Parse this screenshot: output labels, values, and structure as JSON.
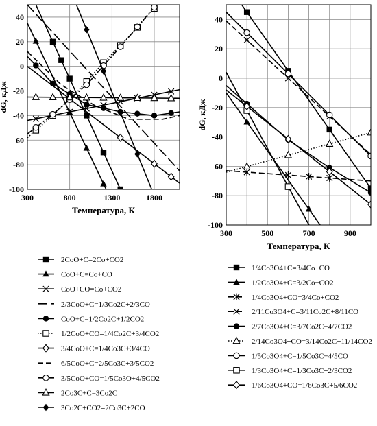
{
  "chart_data": [
    {
      "type": "line",
      "xlabel": "Температура, К",
      "ylabel": "dG, кДж",
      "xlim": [
        300,
        2100
      ],
      "ylim": [
        -100,
        50
      ],
      "xticks": [
        300,
        800,
        1300,
        1800
      ],
      "yticks": [
        -100,
        -80,
        -60,
        -40,
        -20,
        0,
        20,
        40
      ],
      "grid": true,
      "legend_position": "bottom",
      "series": [
        {
          "name": "2CoO+C=2Co+CO2",
          "marker": "square-filled",
          "dash": "solid",
          "x": [
            300,
            1500
          ],
          "y": [
            65,
            -115
          ],
          "markers_x": [
            600,
            700,
            800,
            1000,
            1200,
            1400
          ]
        },
        {
          "name": "CoO+C=Co+CO",
          "marker": "triangle-filled",
          "dash": "solid",
          "x": [
            300,
            1300
          ],
          "y": [
            35,
            -110
          ],
          "markers_x": [
            400,
            800,
            1000,
            1200
          ]
        },
        {
          "name": "CoO+CO=Co+CO2",
          "marker": "x",
          "dash": "solid",
          "x": [
            300,
            2100
          ],
          "y": [
            -44,
            -19
          ],
          "markers_x": [
            400,
            600,
            800,
            1000,
            1200,
            1400,
            1600,
            1800,
            2000
          ]
        },
        {
          "name": "2/3CoO+C=1/3Co2C+2/3CO",
          "marker": "none",
          "dash": "longdash",
          "x": [
            300,
            2100
          ],
          "y": [
            50,
            -85
          ]
        },
        {
          "name": "CoO+C=1/2Co2C+1/2CO2",
          "marker": "circle-filled",
          "dash": "solid",
          "x": [
            300,
            600,
            1000,
            1400,
            1800,
            2100
          ],
          "y": [
            8,
            -14,
            -31,
            -37,
            -40,
            -37
          ],
          "markers_x": [
            400,
            600,
            800,
            1000,
            1200,
            1400,
            1600,
            1800,
            2000
          ]
        },
        {
          "name": "1/2CoO+CO=1/4Co2C+3/4CO2",
          "marker": "square-open",
          "dash": "dotted",
          "x": [
            300,
            600,
            900,
            1200,
            1500,
            1800
          ],
          "y": [
            -58,
            -40,
            -20,
            3,
            24,
            47
          ],
          "markers_x": [
            400,
            600,
            800,
            1000,
            1200,
            1400,
            1600,
            1800
          ]
        },
        {
          "name": "3/4CoO+C=1/4Co3C+3/4CO",
          "marker": "diamond-open",
          "dash": "solid",
          "x": [
            300,
            2100
          ],
          "y": [
            0,
            -95
          ],
          "markers_x": [
            1400,
            1800,
            2000
          ]
        },
        {
          "name": "6/5CoO+C=2/5Co3C+3/5CO2",
          "marker": "none",
          "dash": "dash",
          "x": [
            300,
            700,
            1100,
            1500,
            1900,
            2100
          ],
          "y": [
            12,
            -15,
            -32,
            -43,
            -43,
            -40
          ]
        },
        {
          "name": "3/5CoO+CO=1/5Co3O+4/5CO2",
          "marker": "circle-open",
          "dash": "dashdot",
          "x": [
            300,
            600,
            1000,
            1400,
            1800
          ],
          "y": [
            -55,
            -39,
            -15,
            16,
            48
          ],
          "markers_x": [
            400,
            600,
            800,
            1000,
            1200,
            1400,
            1600,
            1800
          ]
        },
        {
          "name": "2Co3C+C=3Co2C",
          "marker": "triangle-open",
          "dash": "solid",
          "x": [
            300,
            2100
          ],
          "y": [
            -25,
            -26
          ],
          "markers_x": [
            400,
            600,
            800,
            1000,
            1200,
            1400,
            1600,
            1800,
            2000
          ]
        },
        {
          "name": "3Co2C+CO2=2Co3C+2CO",
          "marker": "diamond-filled",
          "dash": "solid",
          "x": [
            880,
            1800
          ],
          "y": [
            50,
            -105
          ],
          "markers_x": [
            1000,
            1200,
            1400,
            1600
          ]
        }
      ]
    },
    {
      "type": "line",
      "xlabel": "Температура, К",
      "ylabel": "dG, кДж",
      "xlim": [
        300,
        1000
      ],
      "ylim": [
        -100,
        50
      ],
      "xticks": [
        300,
        500,
        700,
        900
      ],
      "yticks": [
        -100,
        -80,
        -60,
        -40,
        -20,
        0,
        20,
        40
      ],
      "grid": true,
      "legend_position": "bottom",
      "series": [
        {
          "name": "1/4Co3O4+C=3/4Co+CO",
          "marker": "square-filled",
          "dash": "solid",
          "x": [
            300,
            1000
          ],
          "y": [
            65,
            -75
          ],
          "markers_x": [
            400,
            600,
            800,
            1000
          ]
        },
        {
          "name": "1/2Co3O4+C=3/2Co+CO2",
          "marker": "triangle-filled",
          "dash": "solid",
          "x": [
            300,
            780
          ],
          "y": [
            -10,
            -105
          ],
          "markers_x": [
            400,
            700
          ]
        },
        {
          "name": "1/4Co3O4+CO=3/4Co+CO2",
          "marker": "asterisk",
          "dash": "dash",
          "x": [
            300,
            1000
          ],
          "y": [
            -63,
            -70
          ],
          "markers_x": [
            400,
            600,
            700,
            800
          ]
        },
        {
          "name": "2/11Co3O4+C=3/11Co2C+8/11CO",
          "marker": "x",
          "dash": "dash",
          "x": [
            300,
            1000
          ],
          "y": [
            39,
            -52
          ],
          "markers_x": [
            400,
            600,
            800,
            1000
          ]
        },
        {
          "name": "2/7Co3O4+C=3/7Co2C+4/7CO2",
          "marker": "circle-filled",
          "dash": "solid",
          "x": [
            300,
            600,
            800,
            1000
          ],
          "y": [
            -5,
            -42,
            -61,
            -78
          ],
          "markers_x": [
            400,
            600,
            800,
            1000
          ]
        },
        {
          "name": "2/14Co3O4+CO=3/14Co2C+11/14CO2",
          "marker": "triangle-open",
          "dash": "dotted",
          "x": [
            300,
            1000
          ],
          "y": [
            -64,
            -37
          ],
          "markers_x": [
            400,
            600,
            800,
            1000
          ]
        },
        {
          "name": "1/5Co3O4+C=1/5Co3C+4/5CO",
          "marker": "circle-open",
          "dash": "solid",
          "x": [
            300,
            1000
          ],
          "y": [
            45,
            -53
          ],
          "markers_x": [
            400,
            600,
            800,
            1000
          ]
        },
        {
          "name": "1/3Co3O4+C=1/3Co3C+2/3CO2",
          "marker": "square-open",
          "dash": "solid",
          "x": [
            300,
            720
          ],
          "y": [
            4,
            -105
          ],
          "markers_x": [
            400,
            600
          ]
        },
        {
          "name": "1/6Co3O4+CO=1/6Co3C+5/6CO2",
          "marker": "diamond-open",
          "dash": "solid",
          "x": [
            300,
            1000
          ],
          "y": [
            -8,
            -86
          ],
          "markers_x": [
            400,
            600,
            800,
            1000
          ]
        }
      ]
    }
  ]
}
